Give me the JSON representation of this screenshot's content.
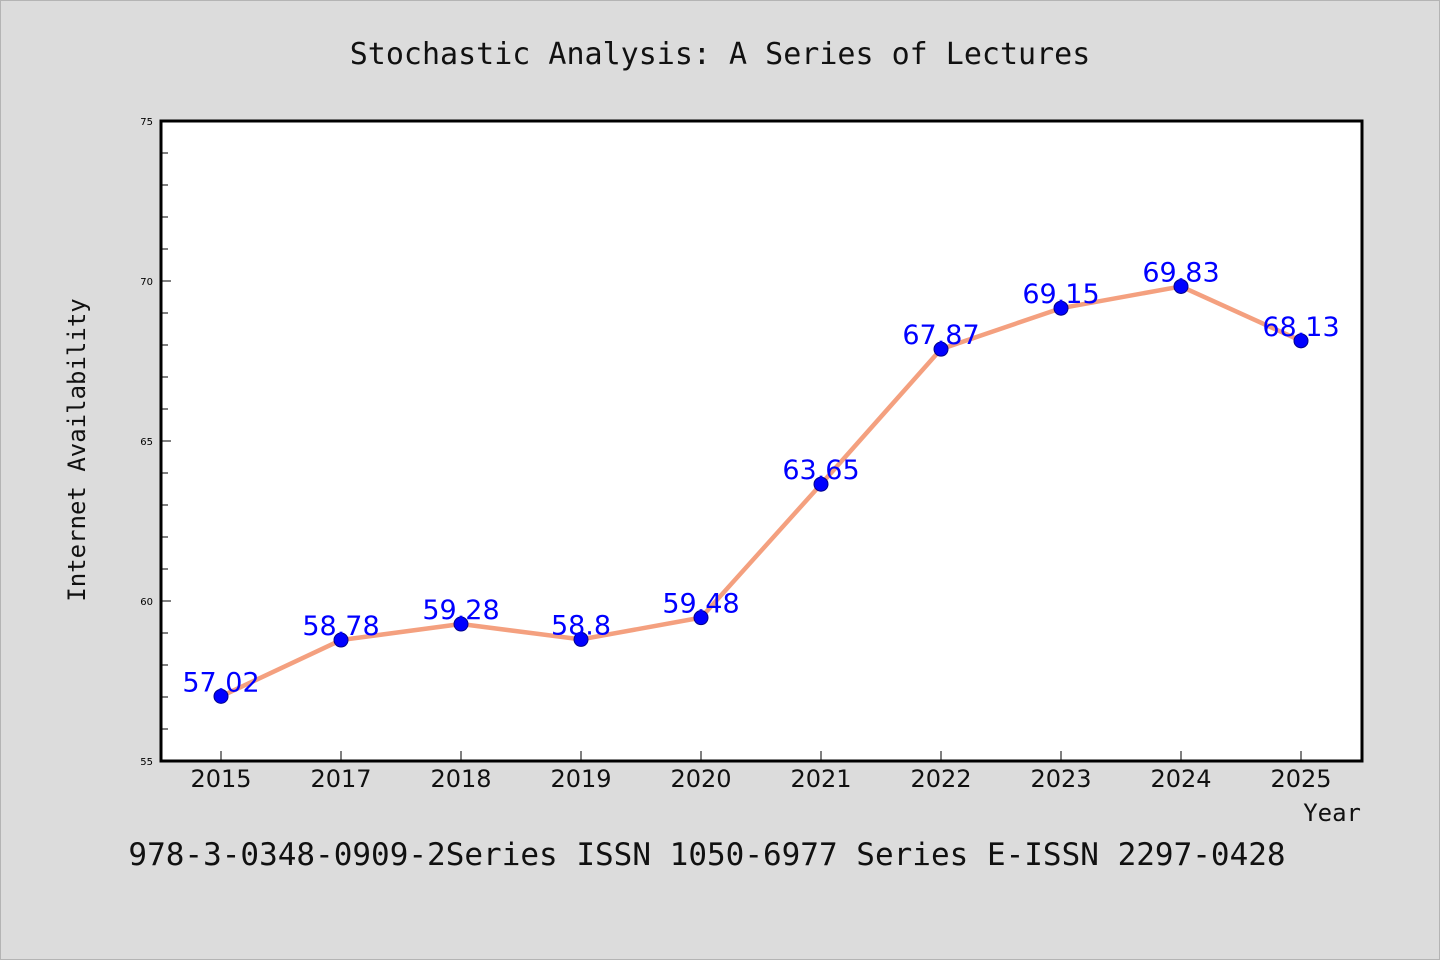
{
  "chart_data": {
    "type": "line",
    "title": "Stochastic Analysis: A Series of Lectures",
    "subtitle": "978-3-0348-0909-2Series ISSN 1050-6977 Series E-ISSN 2297-0428",
    "xlabel": "Year",
    "ylabel": "Internet Availability",
    "categories": [
      "2015",
      "2017",
      "2018",
      "2019",
      "2020",
      "2021",
      "2022",
      "2023",
      "2024",
      "2025"
    ],
    "values": [
      57.02,
      58.78,
      59.28,
      58.8,
      59.48,
      63.65,
      67.87,
      69.15,
      69.83,
      68.13
    ],
    "data_labels": [
      "57.02",
      "58.78",
      "59.28",
      "58.8",
      "59.48",
      "63.65",
      "67.87",
      "69.15",
      "69.83",
      "68.13"
    ],
    "ylim": [
      55,
      75
    ],
    "y_ticks": [
      "55",
      "60",
      "65",
      "70",
      "75"
    ],
    "grid": false,
    "legend": "none",
    "colors": {
      "line": "#f4a07f",
      "marker": "#0000ff",
      "label": "#0000ff",
      "background": "#dcdcdc",
      "plot_background": "#ffffff"
    }
  }
}
